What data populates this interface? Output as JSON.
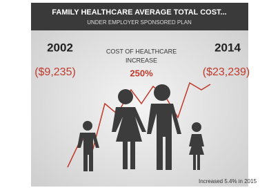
{
  "header": {
    "title": "FAMILY HEALTHCARE AVERAGE TOTAL COST...",
    "subtitle": "UNDER EMPLOYER SPONSORED PLAN"
  },
  "left": {
    "year": "2002",
    "cost": "($9,235)"
  },
  "center": {
    "label_line1": "COST OF HEALTHCARE",
    "label_line2": "INCREASE",
    "increase": "250%"
  },
  "right": {
    "year": "2014",
    "cost": "($23,239)"
  },
  "footnote": "Increased 5.4% in 2015"
}
